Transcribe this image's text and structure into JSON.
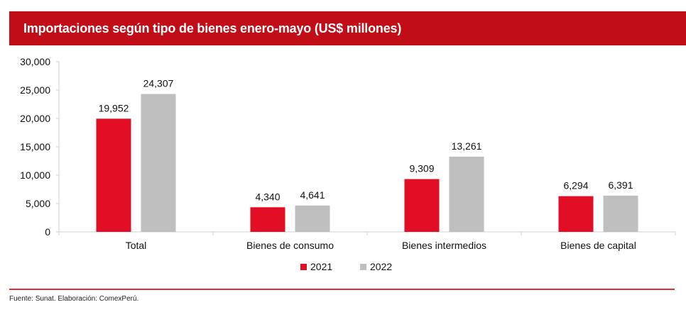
{
  "header": {
    "title": "Importaciones según tipo de bienes enero-mayo (US$ millones)"
  },
  "footer": {
    "source": "Fuente: Sunat. Elaboración: ComexPerú."
  },
  "colors": {
    "title_bg": "#c00d17",
    "s2021": "#e20e26",
    "s2022": "#bfbfbf",
    "axis": "#d0d0d0",
    "rule": "#d9303a"
  },
  "chart_data": {
    "type": "bar",
    "title": "Importaciones según tipo de bienes enero-mayo (US$ millones)",
    "xlabel": "",
    "ylabel": "",
    "ylim": [
      0,
      30000
    ],
    "yticks": [
      0,
      5000,
      10000,
      15000,
      20000,
      25000,
      30000
    ],
    "ytick_labels": [
      "0",
      "5,000",
      "10,000",
      "15,000",
      "20,000",
      "25,000",
      "30,000"
    ],
    "categories": [
      "Total",
      "Bienes de consumo",
      "Bienes intermedios",
      "Bienes de capital"
    ],
    "series": [
      {
        "name": "2021",
        "values": [
          19952,
          4340,
          9309,
          6294
        ],
        "labels": [
          "19,952",
          "4,340",
          "9,309",
          "6,294"
        ]
      },
      {
        "name": "2022",
        "values": [
          24307,
          4641,
          13261,
          6391
        ],
        "labels": [
          "24,307",
          "4,641",
          "13,261",
          "6,391"
        ]
      }
    ],
    "grid": false,
    "legend": "bottom"
  }
}
